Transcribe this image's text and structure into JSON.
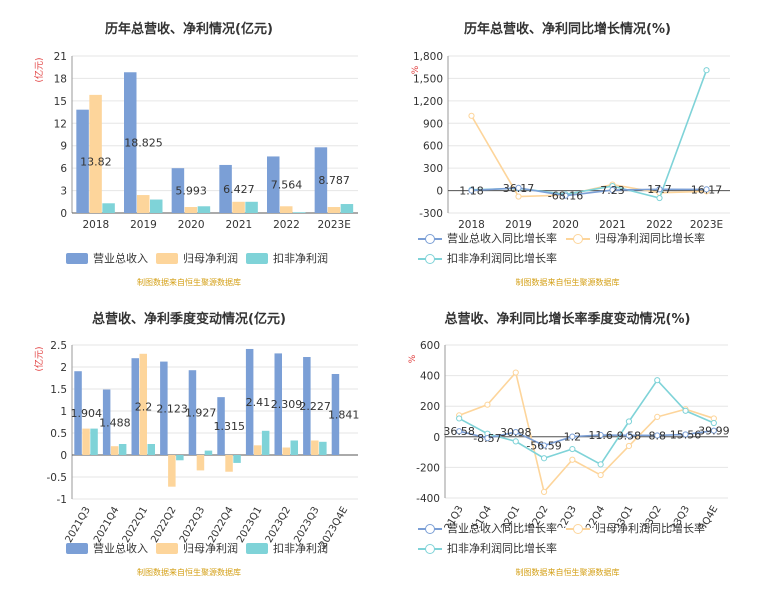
{
  "charts": [
    {
      "title": "历年总营收、净利情况(亿元)",
      "unit": "(亿元)",
      "source": "制图数据来自恒生聚源数据库",
      "legend": [
        "营业总收入",
        "归母净利润",
        "扣非净利润"
      ]
    },
    {
      "title": "历年总营收、净利同比增长情况(%)",
      "unit": "%",
      "source": "制图数据来自恒生聚源数据库",
      "legend": [
        "营业总收入同比增长率",
        "归母净利润同比增长率",
        "扣非净利润同比增长率"
      ]
    },
    {
      "title": "总营收、净利季度变动情况(亿元)",
      "unit": "(亿元)",
      "source": "制图数据来自恒生聚源数据库",
      "legend": [
        "营业总收入",
        "归母净利润",
        "扣非净利润"
      ]
    },
    {
      "title": "总营收、净利同比增长率季度变动情况(%)",
      "unit": "%",
      "source": "制图数据来自恒生聚源数据库",
      "legend": [
        "营业总收入同比增长率",
        "归母净利润同比增长率",
        "扣非净利润同比增长率"
      ]
    }
  ],
  "colors": {
    "revenue": "#7b9fd6",
    "net": "#fdd59b",
    "deducted": "#7fd3d8",
    "axis": "#999999",
    "grid": "#e6e6e6",
    "label": "#333333",
    "unit": "#e03a3a"
  },
  "chart_data": [
    {
      "type": "bar",
      "categories": [
        "2018",
        "2019",
        "2020",
        "2021",
        "2022",
        "2023E"
      ],
      "series": [
        {
          "name": "营业总收入",
          "values": [
            13.82,
            18.825,
            5.993,
            6.427,
            7.564,
            8.787
          ],
          "labels": [
            "13.82",
            "18.825",
            "5.993",
            "6.427",
            "7.564",
            "8.787"
          ]
        },
        {
          "name": "归母净利润",
          "values": [
            15.8,
            2.4,
            0.8,
            1.5,
            0.9,
            0.8
          ]
        },
        {
          "name": "扣非净利润",
          "values": [
            1.3,
            1.8,
            0.9,
            1.5,
            0.1,
            1.2
          ]
        }
      ],
      "ylim": [
        0,
        21
      ],
      "yticks": [
        0,
        3,
        6,
        9,
        12,
        15,
        18,
        21
      ],
      "ylabel": "(亿元)"
    },
    {
      "type": "line",
      "categories": [
        "2018",
        "2019",
        "2020",
        "2021",
        "2022",
        "2023E"
      ],
      "series": [
        {
          "name": "营业总收入同比增长率",
          "values": [
            1.18,
            36.17,
            -68.16,
            7.23,
            17.7,
            16.17
          ],
          "labels": [
            "1.18",
            "36.17",
            "-68.16",
            "7.23",
            "17.7",
            "16.17"
          ]
        },
        {
          "name": "归母净利润同比增长率",
          "values": [
            1000,
            -80,
            -60,
            80,
            -30,
            -10
          ]
        },
        {
          "name": "扣非净利润同比增长率",
          "values": [
            10,
            30,
            -50,
            60,
            -100,
            1610
          ]
        }
      ],
      "ylim": [
        -300,
        1800
      ],
      "yticks": [
        -300,
        0,
        300,
        600,
        900,
        1200,
        1500,
        1800
      ],
      "ytick_labels": [
        "-300",
        "0",
        "300",
        "600",
        "900",
        "1,200",
        "1,500",
        "1,800"
      ],
      "ylabel": "%"
    },
    {
      "type": "bar",
      "categories": [
        "2021Q3",
        "2021Q4",
        "2022Q1",
        "2022Q2",
        "2022Q3",
        "2022Q4",
        "2023Q1",
        "2023Q2",
        "2023Q3",
        "2023Q4E"
      ],
      "series": [
        {
          "name": "营业总收入",
          "values": [
            1.904,
            1.488,
            2.2,
            2.123,
            1.927,
            1.315,
            2.41,
            2.309,
            2.227,
            1.841
          ],
          "labels": [
            "1.904",
            "1.488",
            "2.2",
            "2.123",
            "1.927",
            "1.315",
            "2.41",
            "2.309",
            "2.227",
            "1.841"
          ]
        },
        {
          "name": "归母净利润",
          "values": [
            0.6,
            0.2,
            2.3,
            -0.72,
            -0.35,
            -0.38,
            0.22,
            0.17,
            0.33,
            0.0
          ]
        },
        {
          "name": "扣非净利润",
          "values": [
            0.6,
            0.25,
            0.25,
            -0.12,
            0.1,
            -0.18,
            0.55,
            0.33,
            0.3,
            0.0
          ]
        }
      ],
      "ylim": [
        -1,
        2.5
      ],
      "yticks": [
        -1,
        -0.5,
        0,
        0.5,
        1,
        1.5,
        2,
        2.5
      ],
      "ylabel": "(亿元)"
    },
    {
      "type": "line",
      "categories": [
        "2021Q3",
        "2021Q4",
        "2022Q1",
        "2022Q2",
        "2022Q3",
        "2022Q4",
        "2023Q1",
        "2023Q2",
        "2023Q3",
        "2023Q4E"
      ],
      "series": [
        {
          "name": "营业总收入同比增长率",
          "values": [
            36.58,
            -8.57,
            30.98,
            -56.59,
            1.2,
            11.6,
            9.58,
            8.8,
            15.56,
            39.99
          ],
          "labels": [
            "36.58",
            "-8.57",
            "30.98",
            "-56.59",
            "1.2",
            "11.6",
            "9.58",
            "8.8",
            "15.56",
            "39.99"
          ]
        },
        {
          "name": "归母净利润同比增长率",
          "values": [
            140,
            210,
            420,
            -360,
            -150,
            -250,
            -60,
            130,
            180,
            120
          ]
        },
        {
          "name": "扣非净利润同比增长率",
          "values": [
            120,
            20,
            -30,
            -140,
            -80,
            -180,
            100,
            370,
            170,
            90
          ]
        }
      ],
      "ylim": [
        -400,
        600
      ],
      "yticks": [
        -400,
        -200,
        0,
        200,
        400,
        600
      ],
      "ylabel": "%"
    }
  ]
}
